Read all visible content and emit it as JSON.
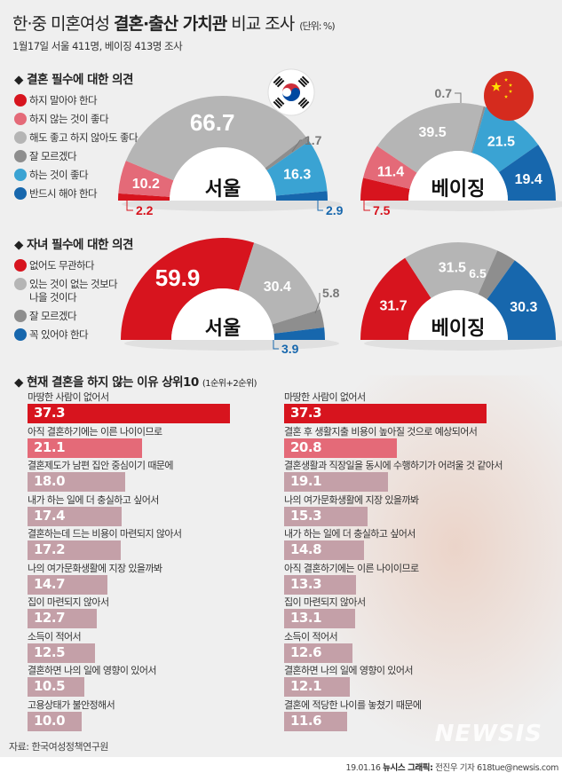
{
  "header": {
    "title_pre": "한·중 미혼여성 ",
    "title_bold": "결혼·출산 가치관",
    "title_post": " 비교 조사",
    "unit": "(단위: %)",
    "subtitle": "1월17일 서울 411명, 베이징 413명 조사"
  },
  "section1": {
    "heading": "◆ 결혼 필수에 대한 의견",
    "legend": [
      {
        "label": "하지 말아야 한다",
        "color": "#d7141e"
      },
      {
        "label": "하지 않는 것이 좋다",
        "color": "#e46a78"
      },
      {
        "label": "해도 좋고 하지 않아도 좋다",
        "color": "#b5b5b5"
      },
      {
        "label": "잘 모르겠다",
        "color": "#8e8e8e"
      },
      {
        "label": "하는 것이 좋다",
        "color": "#3aa3d3"
      },
      {
        "label": "반드시 해야 한다",
        "color": "#1767ad"
      }
    ]
  },
  "section2": {
    "heading": "◆ 자녀 필수에 대한 의견",
    "legend": [
      {
        "label": "없어도 무관하다",
        "color": "#d7141e"
      },
      {
        "label": "있는 것이 없는 것보다",
        "label2": "나을 것이다",
        "color": "#b5b5b5"
      },
      {
        "label": "잘 모르겠다",
        "color": "#8e8e8e"
      },
      {
        "label": "꼭 있어야 한다",
        "color": "#1767ad"
      }
    ]
  },
  "section3": {
    "heading": "◆ 현재 결혼을 하지 않는 이유 상위10",
    "note": "(1순위+2순위)"
  },
  "chart_data": [
    {
      "type": "pie",
      "title": "결혼 필수에 대한 의견 - 서울",
      "center_label": "서울",
      "categories": [
        "하지 말아야 한다",
        "하지 않는 것이 좋다",
        "해도 좋고 하지 않아도 좋다",
        "잘 모르겠다",
        "하는 것이 좋다",
        "반드시 해야 한다"
      ],
      "values": [
        2.2,
        10.2,
        66.7,
        1.7,
        16.3,
        2.9
      ],
      "labels": [
        "2.2",
        "10.2",
        "66.7",
        "1.7",
        "16.3",
        "2.9"
      ],
      "colors": [
        "#d7141e",
        "#e46a78",
        "#b5b5b5",
        "#8e8e8e",
        "#3aa3d3",
        "#1767ad"
      ]
    },
    {
      "type": "pie",
      "title": "결혼 필수에 대한 의견 - 베이징",
      "center_label": "베이징",
      "categories": [
        "하지 말아야 한다",
        "하지 않는 것이 좋다",
        "해도 좋고 하지 않아도 좋다",
        "잘 모르겠다",
        "하는 것이 좋다",
        "반드시 해야 한다"
      ],
      "values": [
        7.5,
        11.4,
        39.5,
        0.7,
        21.5,
        19.4
      ],
      "labels": [
        "7.5",
        "11.4",
        "39.5",
        "0.7",
        "21.5",
        "19.4"
      ],
      "colors": [
        "#d7141e",
        "#e46a78",
        "#b5b5b5",
        "#8e8e8e",
        "#3aa3d3",
        "#1767ad"
      ]
    },
    {
      "type": "pie",
      "title": "자녀 필수에 대한 의견 - 서울",
      "center_label": "서울",
      "categories": [
        "없어도 무관하다",
        "있는 것이 없는 것보다 나을 것이다",
        "잘 모르겠다",
        "꼭 있어야 한다"
      ],
      "values": [
        59.9,
        30.4,
        5.8,
        3.9
      ],
      "labels": [
        "59.9",
        "30.4",
        "5.8",
        "3.9"
      ],
      "colors": [
        "#d7141e",
        "#b5b5b5",
        "#8e8e8e",
        "#1767ad"
      ]
    },
    {
      "type": "pie",
      "title": "자녀 필수에 대한 의견 - 베이징",
      "center_label": "베이징",
      "categories": [
        "없어도 무관하다",
        "있는 것이 없는 것보다 나을 것이다",
        "잘 모르겠다",
        "꼭 있어야 한다"
      ],
      "values": [
        31.7,
        31.5,
        6.5,
        30.3
      ],
      "labels": [
        "31.7",
        "31.5",
        "6.5",
        "30.3"
      ],
      "colors": [
        "#d7141e",
        "#b5b5b5",
        "#8e8e8e",
        "#1767ad"
      ]
    },
    {
      "type": "bar",
      "title": "현재 결혼을 하지 않는 이유 상위10 (1순위+2순위) - 서울",
      "categories": [
        "마땅한 사람이 없어서",
        "아직 결혼하기에는 이른 나이이므로",
        "결혼제도가 남편 집안 중심이기 때문에",
        "내가 하는 일에 더 충실하고 싶어서",
        "결혼하는데 드는 비용이 마련되지 않아서",
        "나의 여가문화생활에 지장 있을까봐",
        "집이 마련되지 않아서",
        "소득이 적어서",
        "결혼하면 나의 일에 영향이 있어서",
        "고용상태가 불안정해서"
      ],
      "values": [
        37.3,
        21.1,
        18.0,
        17.4,
        17.2,
        14.7,
        12.7,
        12.5,
        10.5,
        10.0
      ],
      "labels": [
        "37.3",
        "21.1",
        "18.0",
        "17.4",
        "17.2",
        "14.7",
        "12.7",
        "12.5",
        "10.5",
        "10.0"
      ],
      "orientation": "horizontal"
    },
    {
      "type": "bar",
      "title": "현재 결혼을 하지 않는 이유 상위10 (1순위+2순위) - 베이징",
      "categories": [
        "마땅한 사람이 없어서",
        "결혼 후 생활지출 비용이 높아질 것으로 예상되어서",
        "결혼생활과 직장일을 동시에 수행하기가 어려울 것 같아서",
        "나의 여가문화생활에 지장 있을까봐",
        "내가 하는 일에 더 충실하고 싶어서",
        "아직 결혼하기에는 이른 나이이므로",
        "집이 마련되지 않아서",
        "소득이 적어서",
        "결혼하면 나의 일에 영향이 있어서",
        "결혼에 적당한 나이를 놓쳤기 때문에"
      ],
      "values": [
        37.3,
        20.8,
        19.1,
        15.3,
        14.8,
        13.3,
        13.1,
        12.6,
        12.1,
        11.6
      ],
      "labels": [
        "37.3",
        "20.8",
        "19.1",
        "15.3",
        "14.8",
        "13.3",
        "13.1",
        "12.6",
        "12.1",
        "11.6"
      ],
      "orientation": "horizontal"
    }
  ],
  "bar_colors": {
    "first": "#d7141e",
    "second": "#e46a78",
    "rest": "#c4a0a8"
  },
  "footer": {
    "source": "자료: 한국여성정책연구원",
    "watermark": "NEWSIS",
    "credit_date": "19.01.16 ",
    "credit_bold": "뉴시스 그래픽:",
    "credit_rest": " 전진우 기자 618tue@newsis.com"
  }
}
